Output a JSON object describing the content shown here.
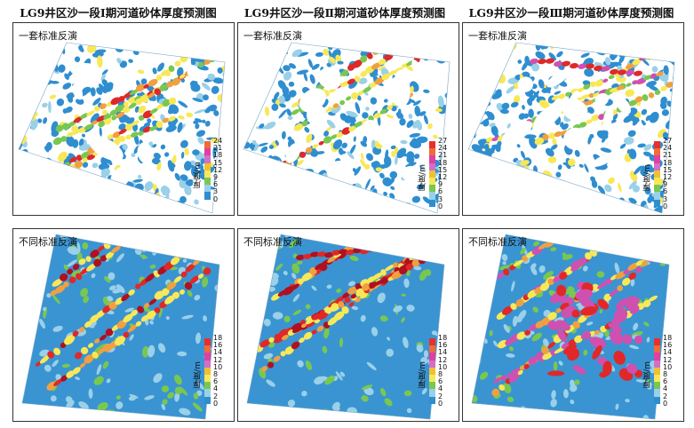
{
  "columns": [
    {
      "title": "LG9井区沙一段Ⅰ期河道砂体厚度预测图"
    },
    {
      "title": "LG9井区沙一段Ⅱ期河道砂体厚度预测图"
    },
    {
      "title": "LG9井区沙一段Ⅲ期河道砂体厚度预测图"
    }
  ],
  "rows": [
    {
      "label": "一套标准反演"
    },
    {
      "label": "不同标准反演"
    }
  ],
  "legend_title": "厚度/m",
  "panels": [
    {
      "id": "r1c1",
      "ticks": [
        "24",
        "21",
        "18",
        "15",
        "12",
        "9",
        "6",
        "3",
        "0"
      ]
    },
    {
      "id": "r1c2",
      "ticks": [
        "27",
        "24",
        "21",
        "18",
        "15",
        "12",
        "9",
        "6",
        "3",
        "0"
      ]
    },
    {
      "id": "r1c3",
      "ticks": [
        "27",
        "24",
        "21",
        "18",
        "15",
        "12",
        "9",
        "6",
        "3",
        "0"
      ]
    },
    {
      "id": "r2c1",
      "ticks": [
        "18",
        "16",
        "14",
        "12",
        "10",
        "8",
        "6",
        "4",
        "2",
        "0"
      ]
    },
    {
      "id": "r2c2",
      "ticks": [
        "18",
        "16",
        "14",
        "12",
        "10",
        "8",
        "6",
        "4",
        "2",
        "0"
      ]
    },
    {
      "id": "r2c3",
      "ticks": [
        "18",
        "16",
        "14",
        "12",
        "10",
        "8",
        "6",
        "4",
        "2",
        "0"
      ]
    }
  ],
  "colors": {
    "scale": [
      "#c00020",
      "#e8302a",
      "#f06a3a",
      "#e040a0",
      "#d070c8",
      "#f0c030",
      "#f8e858",
      "#78c850",
      "#9ad0e8",
      "#2f8ed0"
    ],
    "frame": "#333333"
  }
}
